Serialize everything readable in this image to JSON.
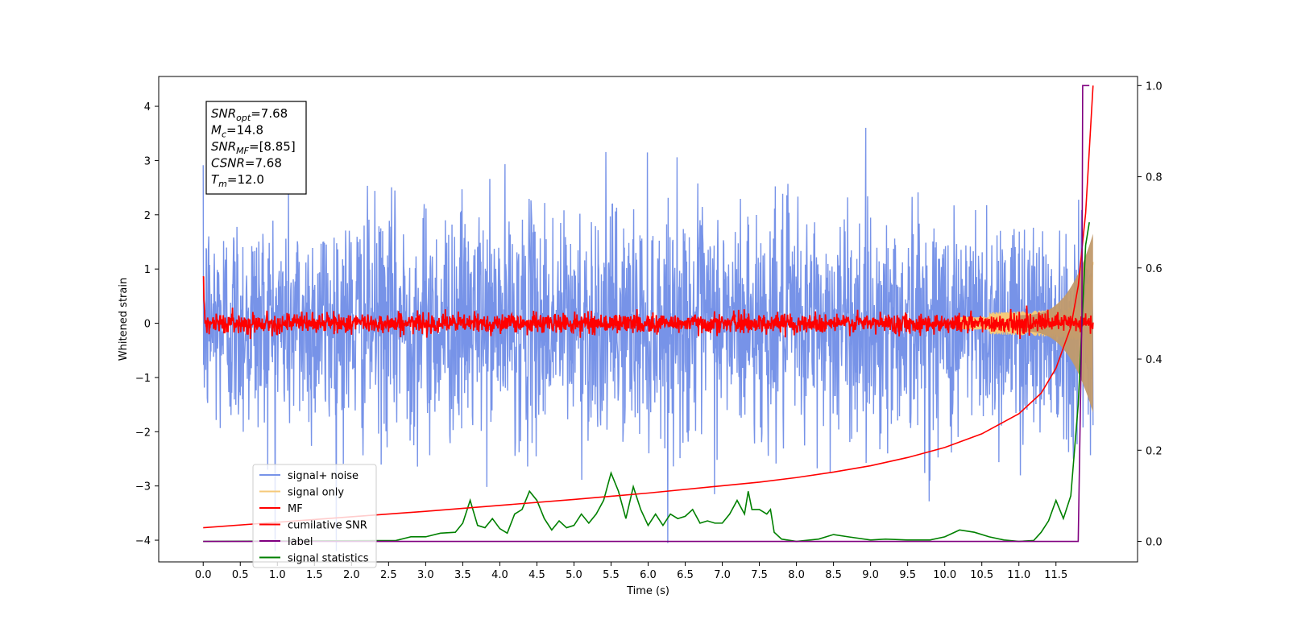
{
  "chart_data": {
    "type": "line",
    "xlabel": "Time (s)",
    "ylabel": "Whitened strain",
    "xlim": [
      -0.6,
      12.6
    ],
    "ylim": [
      -4.4,
      4.55
    ],
    "y2lim": [
      -0.045,
      1.02
    ],
    "xticks": [
      "0.0",
      "0.5",
      "1.0",
      "1.5",
      "2.0",
      "2.5",
      "3.0",
      "3.5",
      "4.0",
      "4.5",
      "5.0",
      "5.5",
      "6.0",
      "6.5",
      "7.0",
      "7.5",
      "8.0",
      "8.5",
      "9.0",
      "9.5",
      "10.0",
      "10.5",
      "11.0",
      "11.5"
    ],
    "yticks": [
      "−4",
      "−3",
      "−2",
      "−1",
      "0",
      "1",
      "2",
      "3",
      "4"
    ],
    "y2ticks": [
      "0.0",
      "0.2",
      "0.4",
      "0.6",
      "0.8",
      "1.0"
    ],
    "annotation": [
      {
        "base": "SNR",
        "sub": "opt",
        "value": "=7.68"
      },
      {
        "base": "M",
        "sub": "c",
        "value": "=14.8"
      },
      {
        "base": "SNR",
        "sub": "MF",
        "value": "=[8.85]"
      },
      {
        "base": "CSNR",
        "sub": "",
        "value": "=7.68"
      },
      {
        "base": "T",
        "sub": "m",
        "value": "=12.0"
      }
    ],
    "legend_placement": "lower-left",
    "series": [
      {
        "name": "signal+ noise",
        "color": "#7793e8",
        "axis": "left",
        "description": "noise band approx ±2.5 around 0 with spikes to ±4, from t=0.0 to 12.0 s"
      },
      {
        "name": "signal only",
        "color": "#f5c97a",
        "axis": "left",
        "description": "chirp envelope growing from ~0 to ~±1.8 near t=12.0 s"
      },
      {
        "name": "MF",
        "color": "#ff0000",
        "axis": "left",
        "description": "matched filter output around 0, amplitude ~±0.25"
      },
      {
        "name": "cumilative SNR",
        "color": "#ff0000",
        "axis": "right",
        "x": [
          0.0,
          1.0,
          2.0,
          3.0,
          4.0,
          5.0,
          6.0,
          7.0,
          7.5,
          8.0,
          8.5,
          9.0,
          9.5,
          10.0,
          10.5,
          11.0,
          11.3,
          11.5,
          11.7,
          11.8,
          11.9,
          12.0
        ],
        "y": [
          0.03,
          0.042,
          0.054,
          0.066,
          0.079,
          0.092,
          0.106,
          0.122,
          0.13,
          0.14,
          0.152,
          0.166,
          0.184,
          0.206,
          0.236,
          0.28,
          0.325,
          0.38,
          0.47,
          0.56,
          0.72,
          1.0
        ]
      },
      {
        "name": "label",
        "color": "#800080",
        "axis": "right",
        "x": [
          0.0,
          11.8,
          11.85,
          11.86,
          11.95
        ],
        "y": [
          0.0,
          0.0,
          0.5,
          1.0,
          1.0
        ]
      },
      {
        "name": "signal statistics",
        "color": "#008000",
        "axis": "right",
        "x": [
          0.0,
          2.6,
          2.8,
          3.0,
          3.2,
          3.4,
          3.5,
          3.6,
          3.7,
          3.8,
          3.9,
          4.0,
          4.1,
          4.2,
          4.3,
          4.4,
          4.5,
          4.6,
          4.7,
          4.8,
          4.9,
          5.0,
          5.1,
          5.2,
          5.3,
          5.4,
          5.5,
          5.6,
          5.7,
          5.8,
          5.9,
          6.0,
          6.1,
          6.2,
          6.3,
          6.4,
          6.5,
          6.6,
          6.7,
          6.8,
          6.9,
          7.0,
          7.1,
          7.2,
          7.3,
          7.35,
          7.4,
          7.5,
          7.6,
          7.65,
          7.7,
          7.8,
          8.0,
          8.3,
          8.5,
          8.7,
          9.0,
          9.2,
          9.5,
          9.8,
          10.0,
          10.2,
          10.4,
          10.6,
          10.8,
          11.0,
          11.2,
          11.3,
          11.4,
          11.5,
          11.6,
          11.7,
          11.8,
          11.9,
          11.95
        ],
        "y": [
          0.0,
          0.002,
          0.01,
          0.01,
          0.018,
          0.02,
          0.04,
          0.09,
          0.035,
          0.03,
          0.05,
          0.028,
          0.018,
          0.06,
          0.07,
          0.11,
          0.09,
          0.05,
          0.025,
          0.045,
          0.03,
          0.035,
          0.06,
          0.04,
          0.06,
          0.09,
          0.15,
          0.11,
          0.05,
          0.12,
          0.07,
          0.035,
          0.06,
          0.035,
          0.06,
          0.05,
          0.055,
          0.07,
          0.04,
          0.045,
          0.04,
          0.04,
          0.06,
          0.09,
          0.06,
          0.11,
          0.07,
          0.07,
          0.06,
          0.07,
          0.02,
          0.005,
          0.0,
          0.005,
          0.015,
          0.01,
          0.003,
          0.005,
          0.003,
          0.003,
          0.01,
          0.025,
          0.02,
          0.01,
          0.003,
          0.0,
          0.002,
          0.02,
          0.045,
          0.09,
          0.05,
          0.1,
          0.3,
          0.65,
          0.7
        ]
      }
    ]
  }
}
